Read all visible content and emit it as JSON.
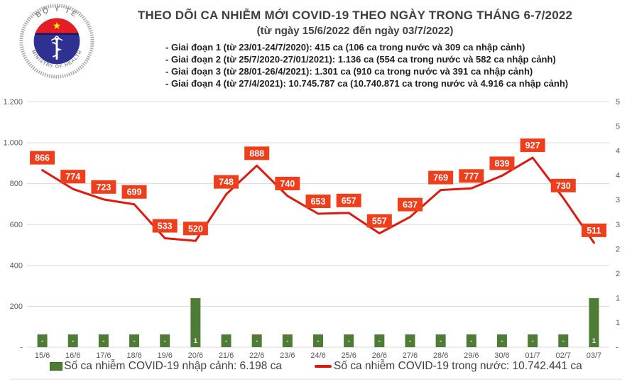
{
  "logo": {
    "top_text": "BỘ Y TẾ",
    "bottom_text": "MINISTRY OF HEALTH"
  },
  "header": {
    "title": "THEO DÕI CA NHIỄM MỚI COVID-19 THEO NGÀY TRONG THÁNG 6-7/2022",
    "subtitle": "(từ ngày 15/6/2022 đến ngày 03/7/2022)",
    "notes": [
      "- Giai đoạn 1 (từ 23/01-24/7/2020): 415 ca (106 ca trong nước và 309 ca nhập cảnh)",
      "- Giai đoạn 2 (từ 25/7/2020-27/01/2021): 1.136 ca (554 ca trong nước và 582 ca nhập cảnh)",
      "- Giai đoạn 3 (từ 28/01-26/4/2021): 1.301 ca (910 ca trong nước và 391 ca nhập cảnh)",
      "- Giai đoạn 4 (từ 27/4/2021): 10.745.787 ca (10.740.871 ca trong nước và 4.916 ca nhập cảnh)"
    ]
  },
  "chart_data": {
    "type": "combo-line-bar",
    "categories": [
      "15/6",
      "16/6",
      "17/6",
      "18/6",
      "19/6",
      "20/6",
      "21/6",
      "22/6",
      "23/6",
      "24/6",
      "25/6",
      "26/6",
      "27/6",
      "28/6",
      "29/6",
      "30/6",
      "01/7",
      "02/7",
      "03/7"
    ],
    "series": [
      {
        "name": "Số ca nhiễm COVID-19 nhập cảnh",
        "type": "bar",
        "axis": "right",
        "values": [
          0,
          0,
          0,
          0,
          0,
          1,
          0,
          0,
          0,
          0,
          0,
          0,
          0,
          0,
          0,
          0,
          0,
          0,
          1
        ],
        "labels": [
          "-",
          "-",
          "-",
          "-",
          "-",
          "1",
          "-",
          "-",
          "-",
          "-",
          "-",
          "-",
          "-",
          "-",
          "-",
          "-",
          "-",
          "-",
          "1"
        ]
      },
      {
        "name": "Số ca nhiễm COVID-19 trong nước",
        "type": "line",
        "axis": "left",
        "values": [
          866,
          774,
          723,
          699,
          533,
          520,
          748,
          888,
          740,
          653,
          657,
          557,
          637,
          769,
          777,
          839,
          927,
          730,
          511
        ]
      }
    ],
    "left_axis": {
      "min": 0,
      "max": 1200,
      "ticks": [
        "1.200",
        "1.000",
        "800",
        "600",
        "400",
        "200",
        "-"
      ]
    },
    "right_axis": {
      "min": 0,
      "max": 5,
      "ticks": [
        "5",
        "5",
        "4",
        "4",
        "3",
        "3",
        "2",
        "2",
        "1",
        "1",
        "-"
      ]
    },
    "grid": true,
    "legend_position": "bottom",
    "colors": {
      "line": "#dc1b10",
      "label_bg": "#ee3e1c",
      "bar": "#4e7b35",
      "grid": "#d9d9d9",
      "axis_text": "#595959"
    }
  },
  "legend": {
    "bar_label": "Số ca nhiễm COVID-19 nhập cảnh: 6.198 ca",
    "line_label": "Số ca nhiễm COVID-19 trong nước: 10.742.441 ca"
  }
}
